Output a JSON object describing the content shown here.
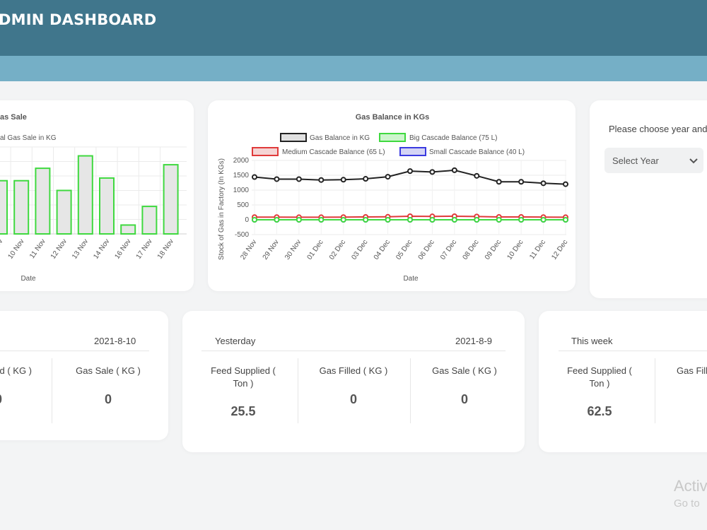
{
  "header": {
    "title": "DMIN DASHBOARD"
  },
  "gas_sale_chart": {
    "title_partial": "as Sale",
    "legend_partial": "al Gas Sale in KG",
    "xlabel": "Date",
    "tick_labels": [
      "0 Nov",
      "10 Nov",
      "11 Nov",
      "12 Nov",
      "13 Nov",
      "14 Nov",
      "16 Nov",
      "17 Nov",
      "18 Nov"
    ]
  },
  "gas_balance_chart": {
    "title": "Gas Balance in KGs",
    "xlabel": "Date",
    "ylabel": "Stock of Gas in Factory (In KGs)",
    "y_ticks": [
      "2000",
      "1500",
      "1000",
      "500",
      "0",
      "-500"
    ],
    "x_ticks": [
      "28 Nov",
      "29 Nov",
      "30 Nov",
      "01 Dec",
      "02 Dec",
      "03 Dec",
      "04 Dec",
      "05 Dec",
      "06 Dec",
      "07 Dec",
      "08 Dec",
      "09 Dec",
      "10 Dec",
      "11 Dec",
      "12 Dec"
    ],
    "legend": [
      "Gas Balance in KG",
      "Big Cascade Balance (75 L)",
      "Medium Cascade Balance (65 L)",
      "Small Cascade Balance (40 L)"
    ]
  },
  "filter": {
    "prompt": "Please choose year and",
    "select_value": "Select Year"
  },
  "today_card": {
    "date": "2021-8-10",
    "label_partial": "d ( KG )",
    "value_partial": "0",
    "sale_label": "Gas Sale ( KG )",
    "sale_value": "0"
  },
  "yesterday_card": {
    "heading": "Yesterday",
    "date": "2021-8-9",
    "feed_label": "Feed Supplied ( Ton )",
    "feed_value": "25.5",
    "filled_label": "Gas Filled ( KG )",
    "filled_value": "0",
    "sale_label": "Gas Sale ( KG )",
    "sale_value": "0"
  },
  "week_card": {
    "heading": "This week",
    "feed_label": "Feed Supplied ( Ton )",
    "feed_value": "62.5",
    "filled_label_partial": "Gas Fill"
  },
  "watermark": {
    "line1": "Activ",
    "line2": "Go to"
  },
  "colors": {
    "header": "#40768c",
    "subbar": "#75afc6",
    "bar_border": "#3fd93f",
    "bar_fill": "#e6e6e6"
  },
  "chart_data": [
    {
      "type": "bar",
      "categories": [
        "0 Nov",
        "10 Nov",
        "11 Nov",
        "12 Nov",
        "13 Nov",
        "14 Nov",
        "16 Nov",
        "17 Nov",
        "18 Nov"
      ],
      "values": [
        300,
        300,
        370,
        245,
        440,
        315,
        50,
        155,
        390
      ],
      "title": "as Sale",
      "xlabel": "Date",
      "ylim": [
        0,
        490
      ],
      "legend": [
        "al Gas Sale in KG"
      ]
    },
    {
      "type": "line",
      "x": [
        "28 Nov",
        "29 Nov",
        "30 Nov",
        "01 Dec",
        "02 Dec",
        "03 Dec",
        "04 Dec",
        "05 Dec",
        "06 Dec",
        "07 Dec",
        "08 Dec",
        "09 Dec",
        "10 Dec",
        "11 Dec",
        "12 Dec"
      ],
      "series": [
        {
          "name": "Gas Balance in KG",
          "color": "#222222",
          "values": [
            1440,
            1370,
            1370,
            1340,
            1350,
            1380,
            1450,
            1640,
            1610,
            1670,
            1480,
            1280,
            1280,
            1230,
            1200
          ]
        },
        {
          "name": "Big Cascade Balance (75 L)",
          "color": "#3fd93f",
          "values": [
            0,
            0,
            0,
            0,
            0,
            0,
            0,
            0,
            0,
            0,
            0,
            0,
            0,
            0,
            0
          ]
        },
        {
          "name": "Medium Cascade Balance (65 L)",
          "color": "#e03a3a",
          "values": [
            90,
            90,
            85,
            85,
            90,
            95,
            100,
            120,
            115,
            120,
            110,
            95,
            95,
            90,
            85
          ]
        },
        {
          "name": "Small Cascade Balance (40 L)",
          "color": "#3a3ae0",
          "values": [
            0,
            0,
            0,
            0,
            0,
            0,
            0,
            0,
            0,
            0,
            0,
            0,
            0,
            0,
            0
          ]
        }
      ],
      "title": "Gas Balance in KGs",
      "xlabel": "Date",
      "ylabel": "Stock of Gas in Factory (In KGs)",
      "ylim": [
        -500,
        2000
      ]
    }
  ]
}
